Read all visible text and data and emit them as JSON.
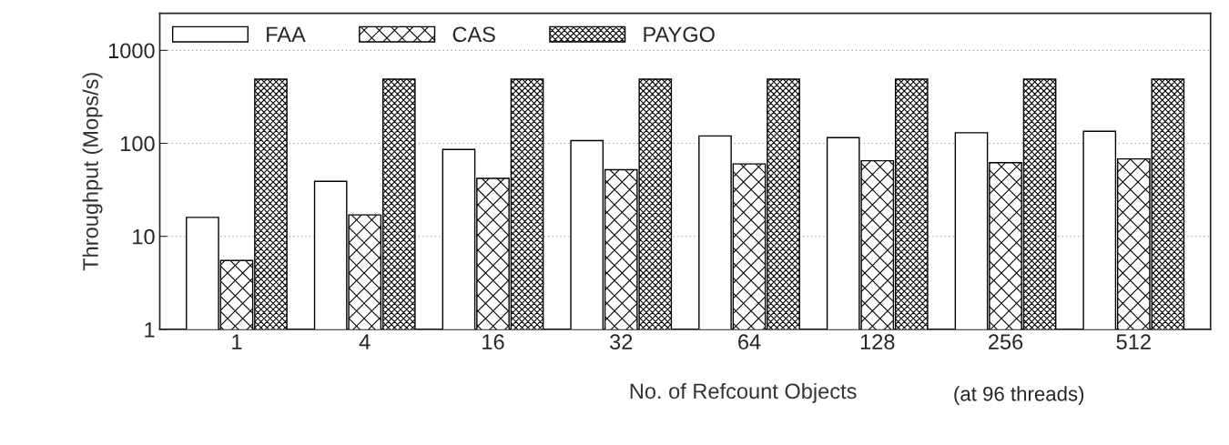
{
  "chart_data": {
    "type": "bar",
    "xlabel": "No. of Refcount Objects",
    "ylabel": "Throughput (Mops/s)",
    "annotations": [
      "(at 96 threads)"
    ],
    "categories": [
      "1",
      "4",
      "16",
      "32",
      "64",
      "128",
      "256",
      "512"
    ],
    "series": [
      {
        "name": "FAA",
        "color": "#ffffff",
        "values": [
          16,
          39,
          86,
          107,
          120,
          115,
          130,
          135
        ]
      },
      {
        "name": "CAS",
        "color": "#000000",
        "values": [
          5.5,
          17,
          42,
          52,
          60,
          65,
          62,
          68
        ]
      },
      {
        "name": "PAYGO",
        "color": "#000000",
        "values": [
          490,
          490,
          490,
          490,
          490,
          490,
          490,
          490
        ]
      }
    ],
    "log": "y",
    "ylim": [
      1,
      2500
    ],
    "yticks": [
      1,
      10,
      100,
      1000
    ],
    "grid": "y",
    "legend": "top left"
  }
}
